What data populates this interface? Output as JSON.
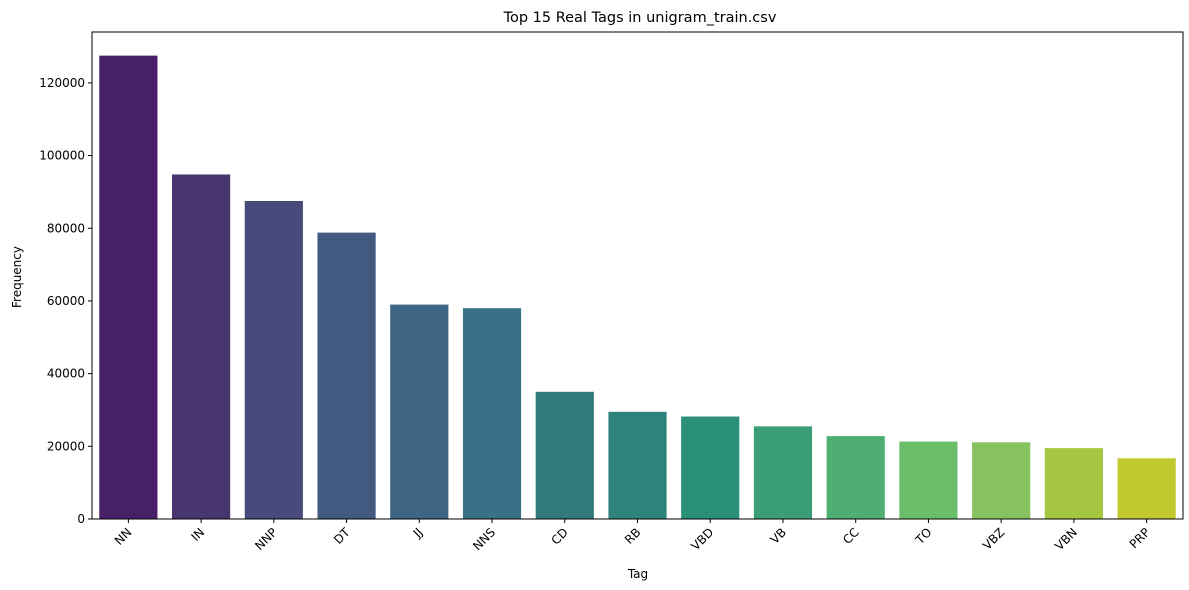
{
  "chart_data": {
    "type": "bar",
    "title": "Top 15 Real Tags in unigram_train.csv",
    "xlabel": "Tag",
    "ylabel": "Frequency",
    "categories": [
      "NN",
      "IN",
      "NNP",
      "DT",
      "JJ",
      "NNS",
      "CD",
      "RB",
      "VBD",
      "VB",
      "CC",
      "TO",
      "VBZ",
      "VBN",
      "PRP"
    ],
    "values": [
      127500,
      94800,
      87500,
      78800,
      59000,
      58000,
      35000,
      29500,
      28200,
      25500,
      22800,
      21300,
      21100,
      19500,
      16700
    ],
    "ylim": [
      0,
      134000
    ],
    "yticks": [
      0,
      20000,
      40000,
      60000,
      80000,
      100000,
      120000
    ],
    "colors": [
      "#472068",
      "#48366f",
      "#474a7b",
      "#435a80",
      "#3e6684",
      "#3a7186",
      "#32797d",
      "#2e847b",
      "#2a9178",
      "#3b9e77",
      "#4faf72",
      "#6abe6a",
      "#86c25f",
      "#a5c640",
      "#c1c92f"
    ],
    "grid": false,
    "legend": "none"
  }
}
